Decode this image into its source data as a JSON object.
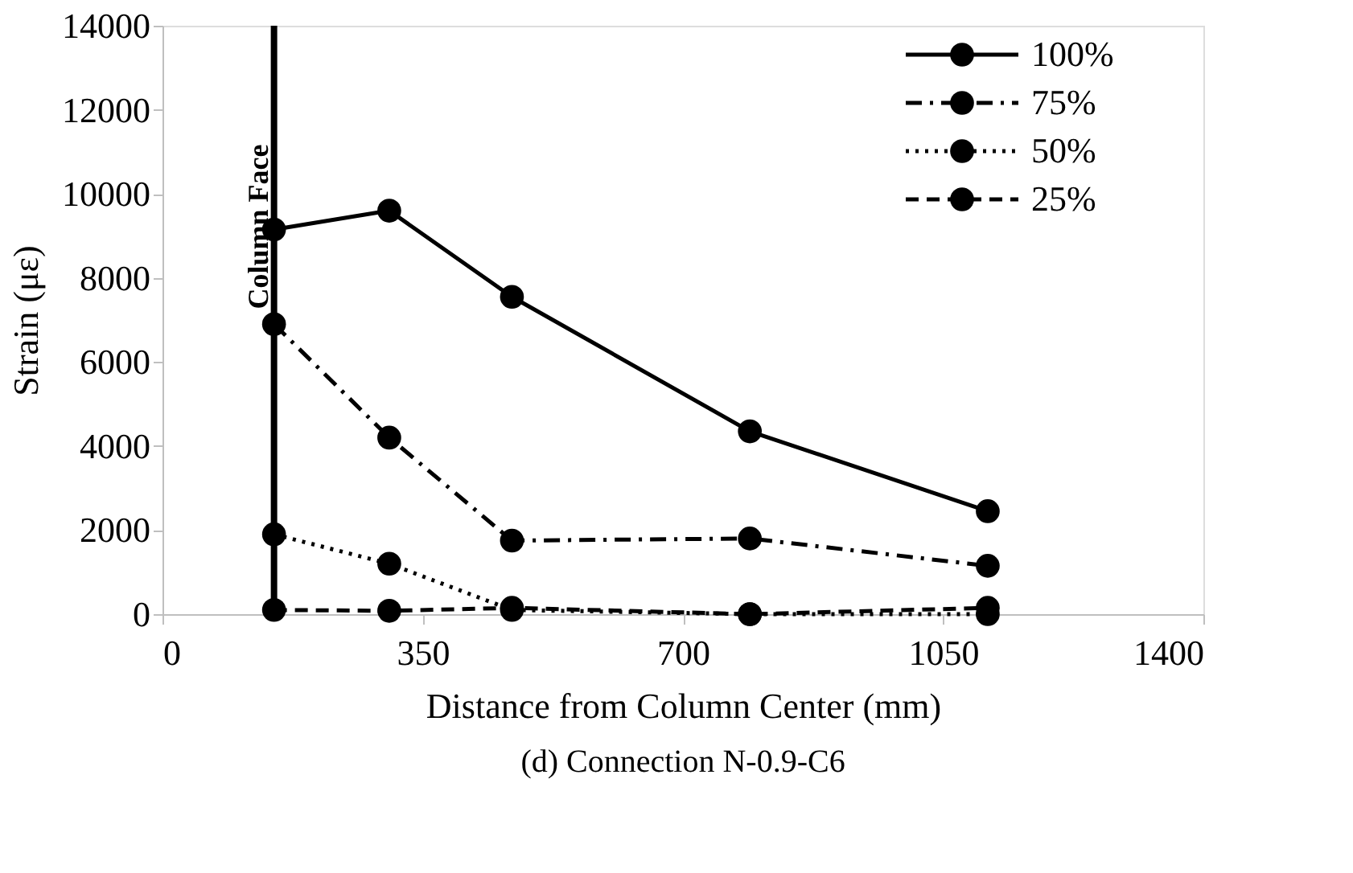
{
  "chart_data": {
    "type": "line",
    "title": "(d) Connection N-0.9-C6",
    "xlabel": "Distance from Column Center (mm)",
    "ylabel": "Strain (με)",
    "x": [
      150,
      305,
      470,
      790,
      1110
    ],
    "series": [
      {
        "name": "100%",
        "color": "#000000",
        "line_style": "solid",
        "values": [
          9150,
          9600,
          7550,
          4350,
          2450
        ]
      },
      {
        "name": "75%",
        "color": "#000000",
        "line_style": "dashed",
        "values": [
          6900,
          4200,
          1750,
          1800,
          1150
        ]
      },
      {
        "name": "50%",
        "color": "#000000",
        "line_style": "dotted",
        "values": [
          1900,
          1200,
          100,
          0,
          0
        ]
      },
      {
        "name": "25%",
        "color": "#000000",
        "line_style": "dashed",
        "values": [
          100,
          80,
          150,
          0,
          150
        ]
      }
    ],
    "xlim": [
      0,
      1400
    ],
    "xticks": [
      0,
      350,
      700,
      1050,
      1400
    ],
    "ylim": [
      0,
      14000
    ],
    "yticks": [
      0,
      2000,
      4000,
      6000,
      8000,
      10000,
      12000,
      14000
    ],
    "ref_lines": [
      {
        "axis": "x",
        "value": 150,
        "label": "Column Face",
        "color": "#000000",
        "line_style": "solid"
      }
    ],
    "marker": "circle",
    "grid": false,
    "legend": "top right"
  }
}
